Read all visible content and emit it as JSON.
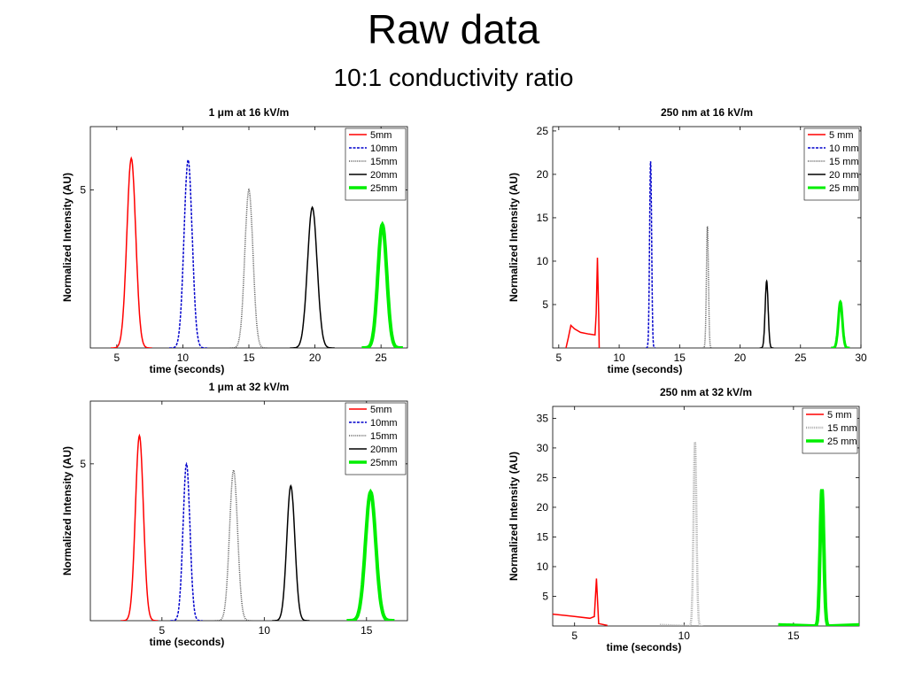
{
  "slide": {
    "title": "Raw data",
    "subtitle": "10:1 conductivity ratio"
  },
  "chart_data": [
    {
      "type": "line",
      "title": "1 μm at 16 kV/m",
      "xlabel": "time (seconds)",
      "ylabel": "Normalized Intensity (AU)",
      "xlim": [
        3,
        27
      ],
      "ylim": [
        0,
        7
      ],
      "xticks": [
        5,
        10,
        15,
        20,
        25
      ],
      "yticks": [
        5
      ],
      "legend": "top-right",
      "series": [
        {
          "name": "5mm",
          "color": "#ff0000",
          "style": "solid",
          "width": 1.5,
          "peak_x": 6.1,
          "peak_y": 6.0,
          "half_width": 0.6
        },
        {
          "name": "10mm",
          "color": "#0000cc",
          "style": "dashed",
          "width": 1.5,
          "peak_x": 10.4,
          "peak_y": 5.95,
          "half_width": 0.55
        },
        {
          "name": "15mm",
          "color": "#555555",
          "style": "dotted",
          "width": 1.5,
          "peak_x": 15.0,
          "peak_y": 5.0,
          "half_width": 0.55
        },
        {
          "name": "20mm",
          "color": "#000000",
          "style": "solid",
          "width": 1.5,
          "peak_x": 19.8,
          "peak_y": 4.45,
          "half_width": 0.65
        },
        {
          "name": "25mm",
          "color": "#00ee00",
          "style": "solid",
          "width": 4,
          "peak_x": 25.1,
          "peak_y": 3.9,
          "half_width": 0.6
        }
      ]
    },
    {
      "type": "line",
      "title": "250 nm at 16 kV/m",
      "xlabel": "time (seconds)",
      "ylabel": "Normalized Intensity (AU)",
      "xlim": [
        4.5,
        30
      ],
      "ylim": [
        0,
        25.5
      ],
      "xticks": [
        5,
        10,
        15,
        20,
        25,
        30
      ],
      "yticks": [
        5,
        10,
        15,
        20,
        25
      ],
      "legend": "top-right",
      "series": [
        {
          "name": "5 mm",
          "color": "#ff0000",
          "style": "solid",
          "width": 1.5,
          "peak_x": 8.2,
          "peak_y": 10.4,
          "half_width": 0.12
        },
        {
          "name": "10 mm",
          "color": "#0000cc",
          "style": "dashed",
          "width": 1.5,
          "peak_x": 12.6,
          "peak_y": 21.5,
          "half_width": 0.15
        },
        {
          "name": "15 mm",
          "color": "#555555",
          "style": "dotted",
          "width": 1.5,
          "peak_x": 17.3,
          "peak_y": 14.0,
          "half_width": 0.15
        },
        {
          "name": "20 mm",
          "color": "#000000",
          "style": "solid",
          "width": 1.5,
          "peak_x": 22.2,
          "peak_y": 7.7,
          "half_width": 0.22
        },
        {
          "name": "25 mm",
          "color": "#00ee00",
          "style": "solid",
          "width": 3,
          "peak_x": 28.3,
          "peak_y": 5.3,
          "half_width": 0.3
        }
      ]
    },
    {
      "type": "line",
      "title": "1 μm at 32 kV/m",
      "xlabel": "time (seconds)",
      "ylabel": "Normalized Intensity (AU)",
      "xlim": [
        1.5,
        17
      ],
      "ylim": [
        0,
        7
      ],
      "xticks": [
        5,
        10,
        15
      ],
      "yticks": [
        5
      ],
      "legend": "top-right",
      "series": [
        {
          "name": "5mm",
          "color": "#ff0000",
          "style": "solid",
          "width": 1.5,
          "peak_x": 3.9,
          "peak_y": 5.9,
          "half_width": 0.35
        },
        {
          "name": "10mm",
          "color": "#0000cc",
          "style": "dashed",
          "width": 1.5,
          "peak_x": 6.2,
          "peak_y": 5.0,
          "half_width": 0.3
        },
        {
          "name": "15mm",
          "color": "#555555",
          "style": "dotted",
          "width": 1.5,
          "peak_x": 8.5,
          "peak_y": 4.8,
          "half_width": 0.35
        },
        {
          "name": "20mm",
          "color": "#000000",
          "style": "solid",
          "width": 1.5,
          "peak_x": 11.3,
          "peak_y": 4.3,
          "half_width": 0.35
        },
        {
          "name": "25mm",
          "color": "#00ee00",
          "style": "solid",
          "width": 4,
          "peak_x": 15.2,
          "peak_y": 4.1,
          "half_width": 0.45
        }
      ]
    },
    {
      "type": "line",
      "title": "250 nm at 32 kV/m",
      "xlabel": "time (seconds)",
      "ylabel": "Normalized Intensity (AU)",
      "xlim": [
        4,
        18
      ],
      "ylim": [
        0,
        37
      ],
      "xticks": [
        5,
        10,
        15
      ],
      "yticks": [
        5,
        10,
        15,
        20,
        25,
        30,
        35
      ],
      "legend": "top-right",
      "series": [
        {
          "name": "5 mm",
          "color": "#ff0000",
          "style": "solid",
          "width": 1.5,
          "peak_x": 6.0,
          "peak_y": 8.0,
          "half_width": 0.08
        },
        {
          "name": "15 mm",
          "color": "#aaaaaa",
          "style": "dotted",
          "width": 2.5,
          "peak_x": 10.5,
          "peak_y": 31.0,
          "half_width": 0.12
        },
        {
          "name": "25 mm",
          "color": "#00ee00",
          "style": "solid",
          "width": 4,
          "peak_x": 16.3,
          "peak_y": 23.0,
          "half_width": 0.15
        }
      ]
    }
  ]
}
